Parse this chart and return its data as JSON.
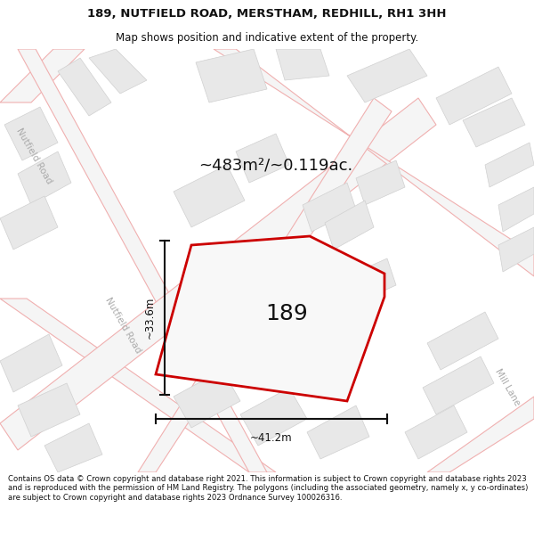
{
  "title_line1": "189, NUTFIELD ROAD, MERSTHAM, REDHILL, RH1 3HH",
  "title_line2": "Map shows position and indicative extent of the property.",
  "area_text": "~483m²/~0.119ac.",
  "property_number": "189",
  "dim_width": "~41.2m",
  "dim_height": "~33.6m",
  "road_label_diag1": "Nutfield Road",
  "road_label_diag2": "Nutfield Road",
  "road_label_right": "Mill Lane",
  "footer_text": "Contains OS data © Crown copyright and database right 2021. This information is subject to Crown copyright and database rights 2023 and is reproduced with the permission of HM Land Registry. The polygons (including the associated geometry, namely x, y co-ordinates) are subject to Crown copyright and database rights 2023 Ordnance Survey 100026316.",
  "map_bg": "#f8f8f8",
  "road_line_color": "#f0b0b0",
  "road_fill_color": "#f5f5f5",
  "building_fill": "#e8e8e8",
  "building_edge": "#d0d0d0",
  "prop_fill": "#f8f8f8",
  "prop_edge": "#cc0000",
  "header_bg": "#ffffff",
  "footer_bg": "#ffffff",
  "dim_color": "#111111",
  "text_color": "#111111",
  "road_label_color": "#aaaaaa"
}
